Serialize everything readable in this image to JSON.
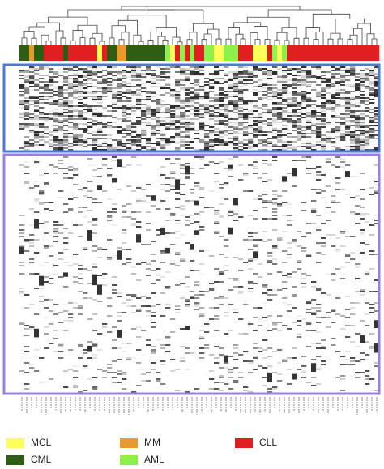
{
  "legend": [
    {
      "label": "MCL",
      "color": "#ffff5a"
    },
    {
      "label": "MM",
      "color": "#e89a2c"
    },
    {
      "label": "CLL",
      "color": "#e02020"
    },
    {
      "label": "CML",
      "color": "#2e5e14"
    },
    {
      "label": "AML",
      "color": "#8ef04a"
    }
  ],
  "sample_groups": [
    "CML",
    "CML",
    "MM",
    "CML",
    "CML",
    "CLL",
    "CLL",
    "CLL",
    "CLL",
    "CML",
    "CLL",
    "CLL",
    "CLL",
    "CLL",
    "CLL",
    "CLL",
    "MCL",
    "CLL",
    "CML",
    "CML",
    "MM",
    "MM",
    "CML",
    "CML",
    "CML",
    "CML",
    "CML",
    "CML",
    "CML",
    "CML",
    "AML",
    "MCL",
    "CLL",
    "AML",
    "CLL",
    "AML",
    "CLL",
    "CLL",
    "AML",
    "AML",
    "MCL",
    "MCL",
    "AML",
    "AML",
    "AML",
    "CLL",
    "CLL",
    "CLL",
    "MCL",
    "MCL",
    "MCL",
    "CLL",
    "AML",
    "MCL",
    "AML",
    "CLL",
    "CLL",
    "CLL",
    "CLL",
    "CLL",
    "CLL",
    "CLL",
    "CLL",
    "CLL",
    "CLL",
    "CLL",
    "CLL",
    "CLL",
    "CLL",
    "CLL",
    "CLL",
    "CLL",
    "CLL",
    "CLL"
  ]
}
